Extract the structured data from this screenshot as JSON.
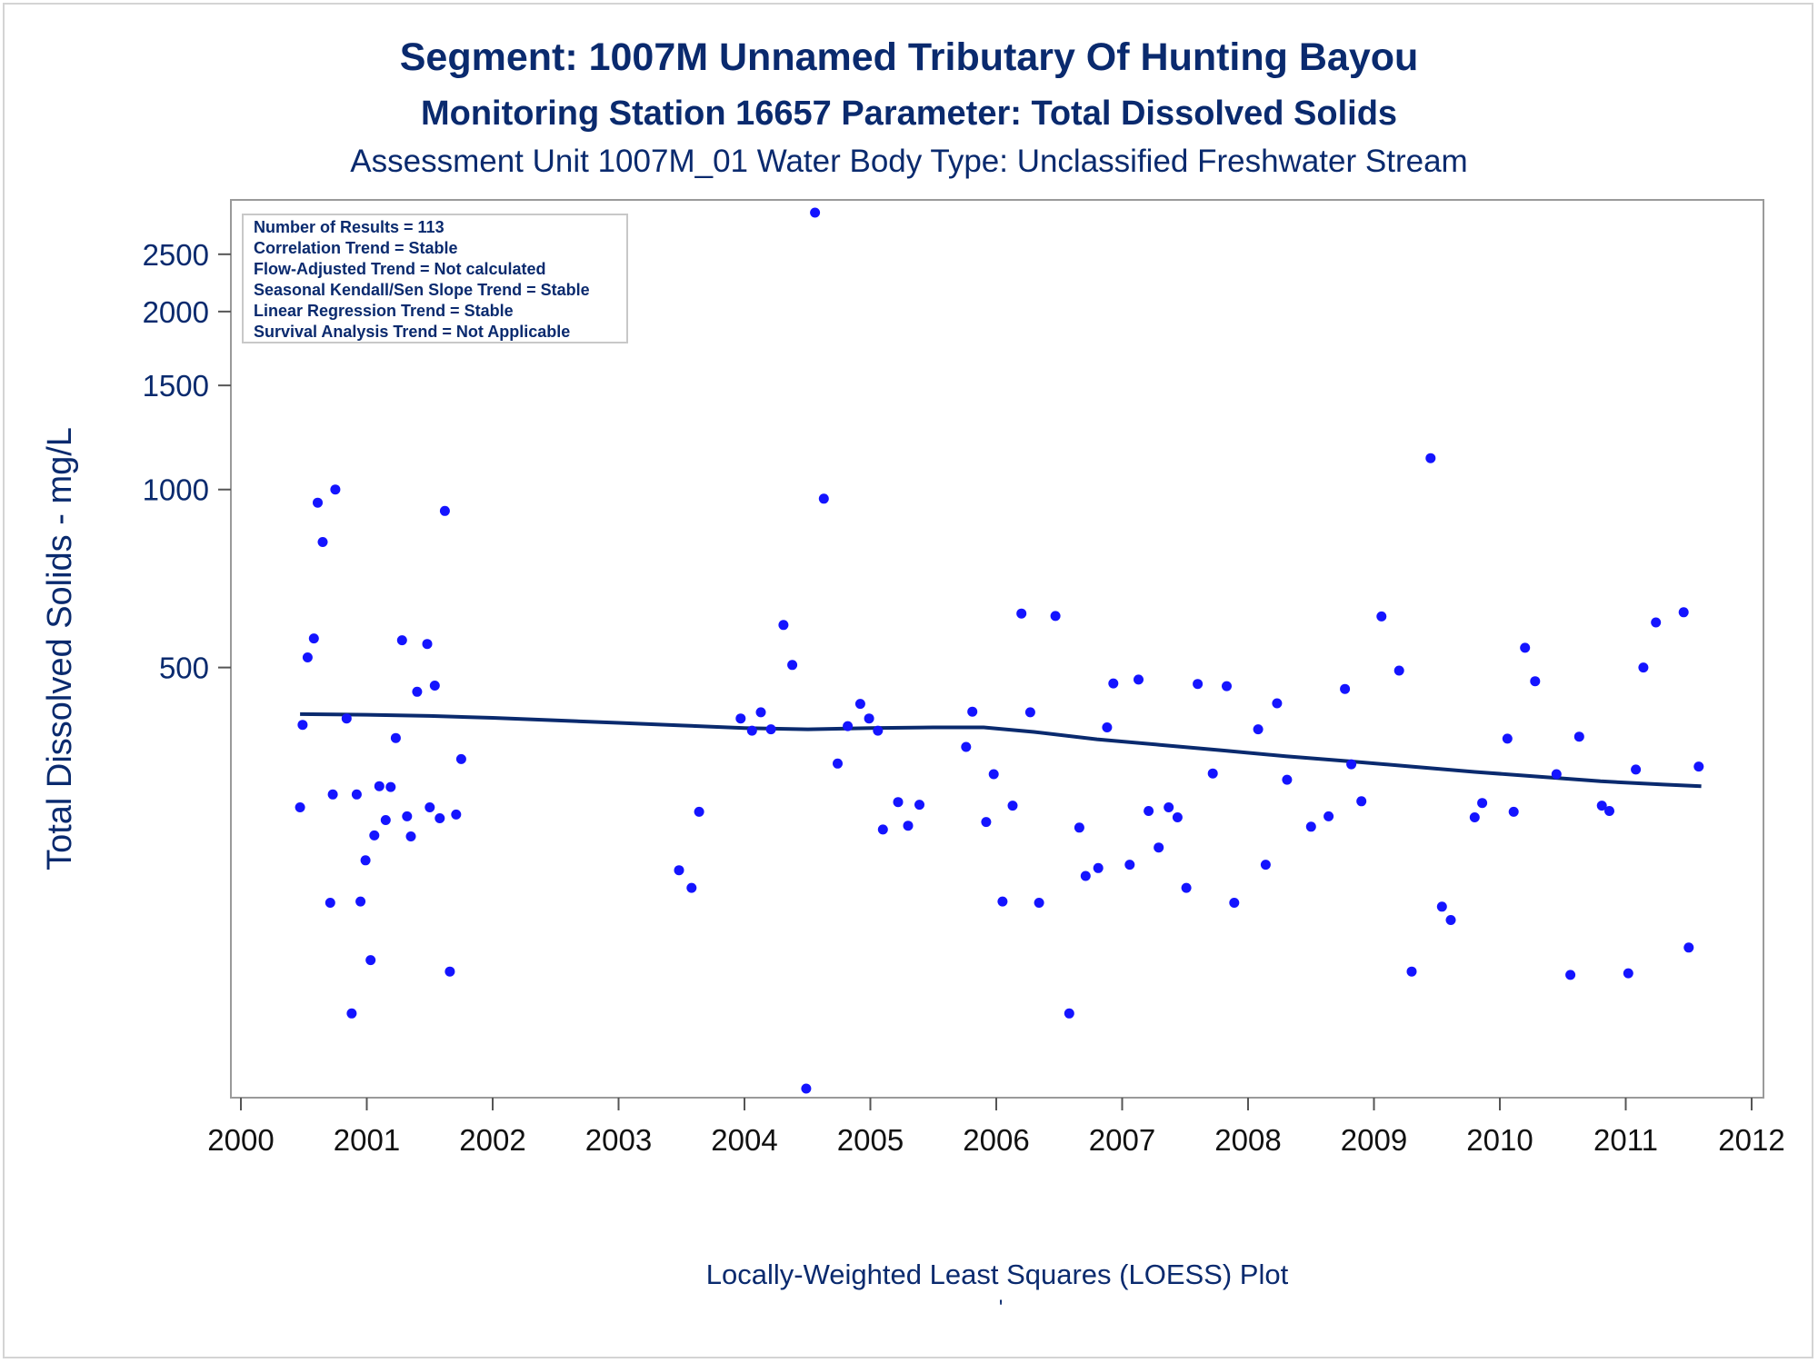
{
  "chart_data": {
    "type": "scatter",
    "title": "Segment: 1007M  Unnamed Tributary Of Hunting Bayou",
    "subtitle": "Monitoring Station 16657 Parameter: Total Dissolved Solids",
    "subtitle2": "Assessment Unit 1007M_01   Water Body Type: Unclassified Freshwater Stream",
    "xlabel": "Locally-Weighted Least Squares (LOESS) Plot",
    "ylabel": "Total Dissolved Solids - mg/L",
    "footnote": "'",
    "y_scale": "log",
    "xlim": [
      2000,
      2012
    ],
    "ylim": [
      97,
      2940
    ],
    "x_ticks": [
      "2000",
      "2001",
      "2002",
      "2003",
      "2004",
      "2005",
      "2006",
      "2007",
      "2008",
      "2009",
      "2010",
      "2011",
      "2012"
    ],
    "y_ticks": [
      {
        "value": 500,
        "label": "500"
      },
      {
        "value": 1000,
        "label": "1000"
      },
      {
        "value": 1500,
        "label": "1500"
      },
      {
        "value": 2000,
        "label": "2000"
      },
      {
        "value": 2500,
        "label": "2500"
      }
    ],
    "legend_box": {
      "placement": "top-left",
      "lines": [
        "Number of Results = 113",
        "Correlation Trend = Stable",
        "Flow-Adjusted Trend = Not calculated",
        "Seasonal Kendall/Sen Slope Trend = Stable",
        "Linear Regression Trend = Stable",
        "Survival Analysis Trend = Not Applicable"
      ]
    },
    "colors": {
      "points": "#1414ff",
      "loess": "#0a2a6e",
      "text": "#0a2a6e"
    },
    "points": [
      [
        2000.47,
        290
      ],
      [
        2000.49,
        400
      ],
      [
        2000.53,
        520
      ],
      [
        2000.58,
        560
      ],
      [
        2000.61,
        950
      ],
      [
        2000.65,
        815
      ],
      [
        2000.71,
        200
      ],
      [
        2000.73,
        305
      ],
      [
        2000.75,
        1000
      ],
      [
        2000.84,
        410
      ],
      [
        2000.88,
        130
      ],
      [
        2000.92,
        305
      ],
      [
        2000.95,
        201
      ],
      [
        2000.99,
        236
      ],
      [
        2001.03,
        160
      ],
      [
        2001.06,
        260
      ],
      [
        2001.1,
        315
      ],
      [
        2001.15,
        276
      ],
      [
        2001.19,
        314
      ],
      [
        2001.23,
        380
      ],
      [
        2001.28,
        556
      ],
      [
        2001.32,
        280
      ],
      [
        2001.35,
        259
      ],
      [
        2001.4,
        455
      ],
      [
        2001.48,
        548
      ],
      [
        2001.5,
        290
      ],
      [
        2001.54,
        466
      ],
      [
        2001.58,
        278
      ],
      [
        2001.62,
        920
      ],
      [
        2001.66,
        153
      ],
      [
        2001.71,
        282
      ],
      [
        2001.75,
        350
      ],
      [
        2003.48,
        227
      ],
      [
        2003.58,
        212
      ],
      [
        2003.64,
        285
      ],
      [
        2003.97,
        410
      ],
      [
        2004.06,
        391
      ],
      [
        2004.13,
        420
      ],
      [
        2004.21,
        393
      ],
      [
        2004.31,
        590
      ],
      [
        2004.38,
        505
      ],
      [
        2004.49,
        97
      ],
      [
        2004.56,
        2940
      ],
      [
        2004.63,
        965
      ],
      [
        2004.74,
        344
      ],
      [
        2004.82,
        398
      ],
      [
        2004.92,
        434
      ],
      [
        2004.99,
        410
      ],
      [
        2005.06,
        391
      ],
      [
        2005.1,
        266
      ],
      [
        2005.22,
        296
      ],
      [
        2005.3,
        270
      ],
      [
        2005.39,
        293
      ],
      [
        2005.76,
        367
      ],
      [
        2005.81,
        421
      ],
      [
        2005.92,
        274
      ],
      [
        2005.98,
        330
      ],
      [
        2006.05,
        201
      ],
      [
        2006.13,
        292
      ],
      [
        2006.2,
        617
      ],
      [
        2006.27,
        420
      ],
      [
        2006.34,
        200
      ],
      [
        2006.47,
        611
      ],
      [
        2006.58,
        130
      ],
      [
        2006.66,
        268
      ],
      [
        2006.71,
        222
      ],
      [
        2006.81,
        229
      ],
      [
        2006.88,
        396
      ],
      [
        2006.93,
        470
      ],
      [
        2007.06,
        232
      ],
      [
        2007.13,
        477
      ],
      [
        2007.21,
        286
      ],
      [
        2007.29,
        248
      ],
      [
        2007.37,
        290
      ],
      [
        2007.44,
        279
      ],
      [
        2007.51,
        212
      ],
      [
        2007.6,
        469
      ],
      [
        2007.72,
        331
      ],
      [
        2007.83,
        465
      ],
      [
        2007.89,
        200
      ],
      [
        2008.08,
        393
      ],
      [
        2008.14,
        232
      ],
      [
        2008.23,
        435
      ],
      [
        2008.31,
        323
      ],
      [
        2008.5,
        269
      ],
      [
        2008.64,
        280
      ],
      [
        2008.77,
        460
      ],
      [
        2008.82,
        343
      ],
      [
        2008.9,
        297
      ],
      [
        2009.06,
        610
      ],
      [
        2009.2,
        494
      ],
      [
        2009.3,
        153
      ],
      [
        2009.45,
        1130
      ],
      [
        2009.54,
        197
      ],
      [
        2009.61,
        187
      ],
      [
        2009.8,
        279
      ],
      [
        2009.86,
        295
      ],
      [
        2010.06,
        379
      ],
      [
        2010.11,
        285
      ],
      [
        2010.2,
        540
      ],
      [
        2010.28,
        474
      ],
      [
        2010.45,
        330
      ],
      [
        2010.56,
        151
      ],
      [
        2010.63,
        382
      ],
      [
        2010.81,
        292
      ],
      [
        2010.87,
        286
      ],
      [
        2011.02,
        152
      ],
      [
        2011.08,
        336
      ],
      [
        2011.14,
        500
      ],
      [
        2011.24,
        596
      ],
      [
        2011.46,
        620
      ],
      [
        2011.5,
        168
      ],
      [
        2011.58,
        340
      ]
    ],
    "loess": [
      [
        2000.47,
        417
      ],
      [
        2001.0,
        416
      ],
      [
        2001.5,
        414
      ],
      [
        2002.0,
        411
      ],
      [
        2002.5,
        407
      ],
      [
        2003.0,
        403
      ],
      [
        2003.5,
        399
      ],
      [
        2004.0,
        395
      ],
      [
        2004.5,
        393
      ],
      [
        2005.0,
        395
      ],
      [
        2005.5,
        396
      ],
      [
        2005.9,
        396
      ],
      [
        2006.3,
        389
      ],
      [
        2006.8,
        378
      ],
      [
        2007.3,
        370
      ],
      [
        2007.8,
        362
      ],
      [
        2008.3,
        354
      ],
      [
        2008.8,
        347
      ],
      [
        2009.3,
        340
      ],
      [
        2009.8,
        333
      ],
      [
        2010.3,
        327
      ],
      [
        2010.8,
        321
      ],
      [
        2011.3,
        317
      ],
      [
        2011.6,
        315
      ]
    ]
  }
}
